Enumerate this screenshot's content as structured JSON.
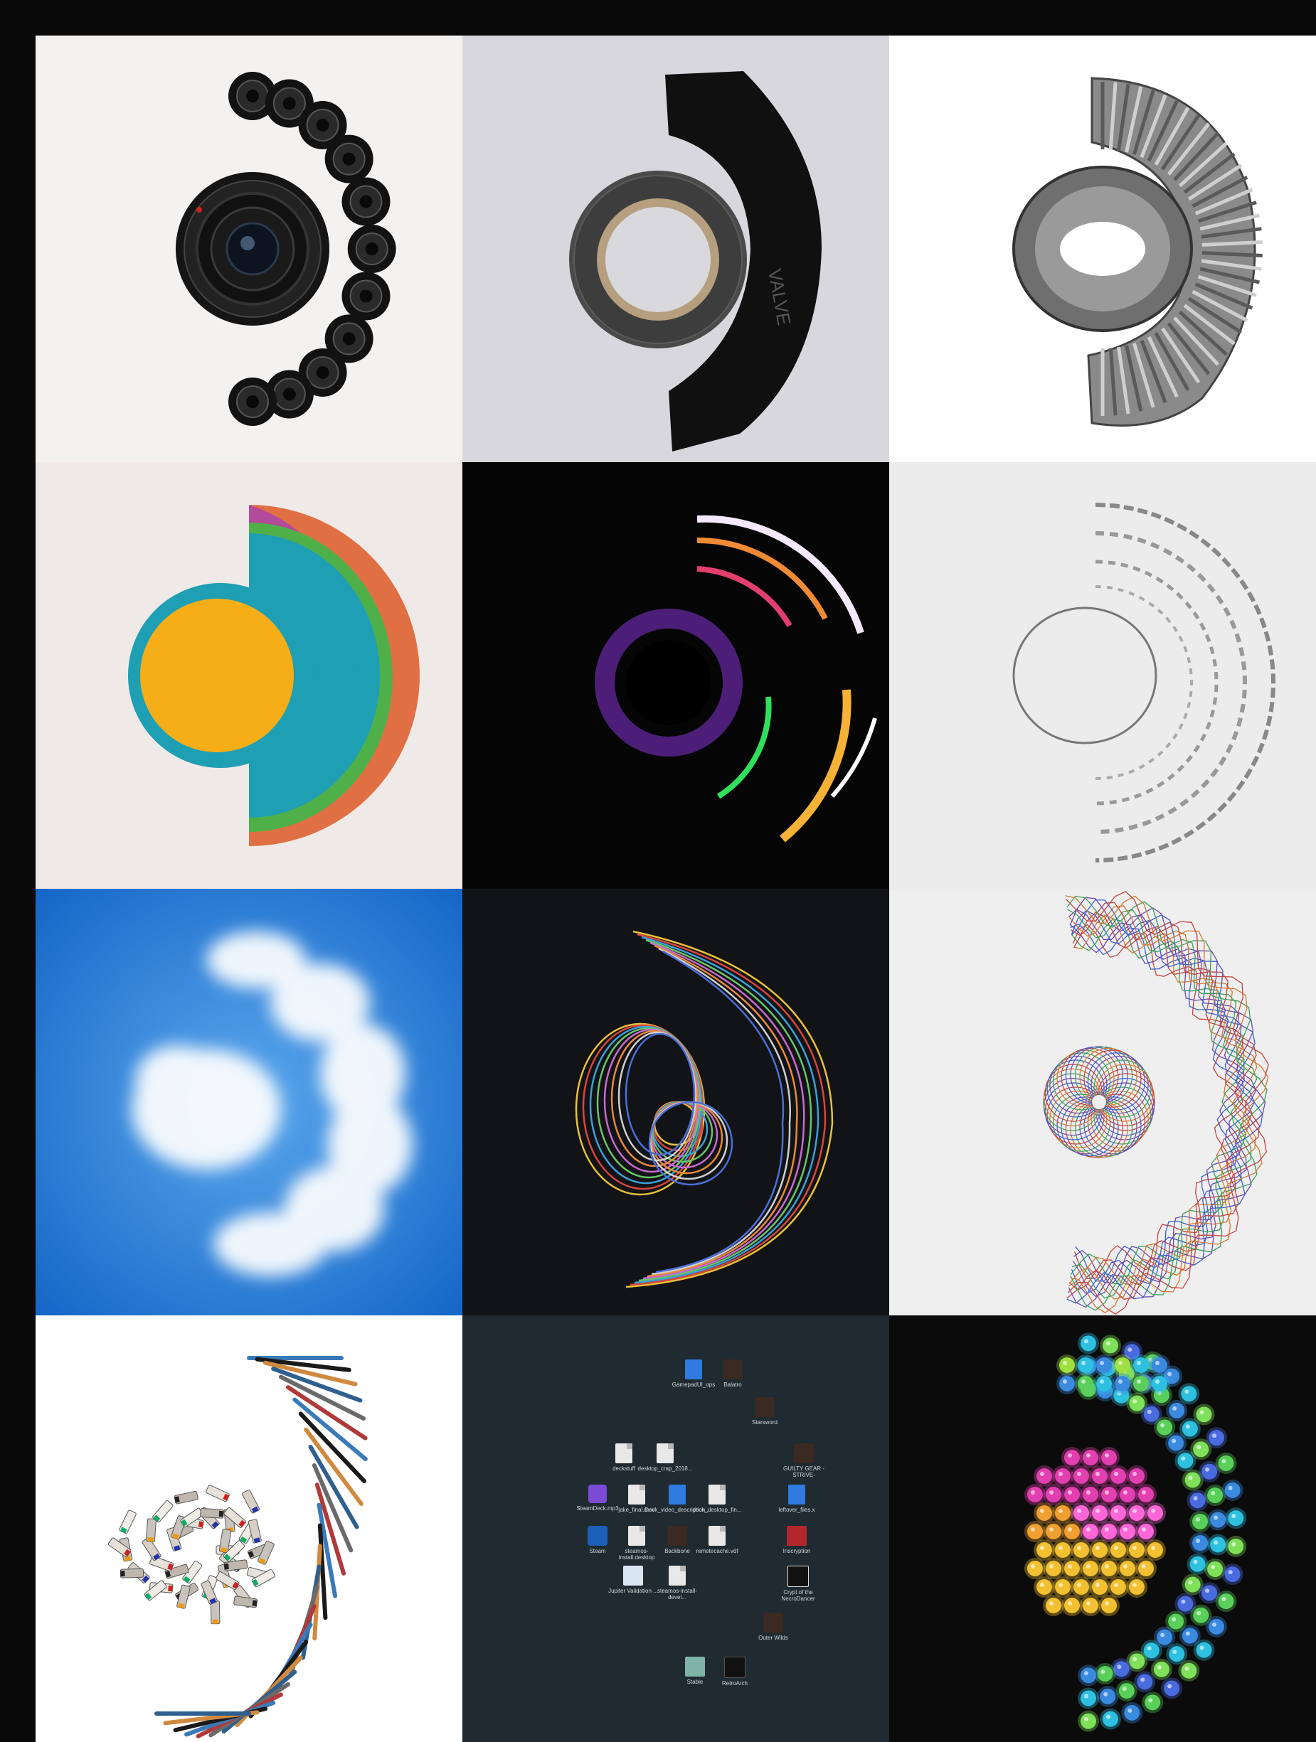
{
  "tiles": [
    {
      "id": "camera-lens-film-canisters",
      "bg": "#f4f2f0"
    },
    {
      "id": "gaffer-tape-roll",
      "bg": "#d8d7de"
    },
    {
      "id": "aluminum-duct",
      "bg": "#ffffff"
    },
    {
      "id": "paper-cut-layers",
      "bg": "#efeae8"
    },
    {
      "id": "light-trails",
      "bg": "#050505"
    },
    {
      "id": "pencil-drawing",
      "bg": "#ececec"
    },
    {
      "id": "cloud",
      "bg": "#1a6fd0"
    },
    {
      "id": "colored-threads",
      "bg": "#121316"
    },
    {
      "id": "spirograph",
      "bg": "#efefef"
    },
    {
      "id": "paint-brushes-tubes",
      "bg": "#ffffff"
    },
    {
      "id": "desktop-icons",
      "bg": "#1f2a31"
    },
    {
      "id": "glowing-markers",
      "bg": "#0b0b0b"
    }
  ],
  "tape_text": "VALVE",
  "desktop_icons": [
    {
      "label": "GamepadUI_ops",
      "icon": "doc-blue-icon"
    },
    {
      "label": "Balatro",
      "icon": "game-icon"
    },
    {
      "label": "Starsword",
      "icon": "game-icon"
    },
    {
      "label": "deckstuff",
      "icon": "doc-icon"
    },
    {
      "label": "desktop_crap_2018...",
      "icon": "doc-icon"
    },
    {
      "label": "GUILTY GEAR -STRIVE-",
      "icon": "game-icon"
    },
    {
      "label": "SteamDeck.mp3",
      "icon": "audio-icon"
    },
    {
      "label": "jake_final.mov",
      "icon": "doc-icon"
    },
    {
      "label": "Deck_video_description...",
      "icon": "doc-blue-icon"
    },
    {
      "label": "deck_desktop_fin...",
      "icon": "doc-icon"
    },
    {
      "label": "leftover_files.x",
      "icon": "doc-blue-icon"
    },
    {
      "label": "Steam",
      "icon": "steam-icon"
    },
    {
      "label": "steamos-install.desktop",
      "icon": "doc-icon"
    },
    {
      "label": "Backbone",
      "icon": "game-icon"
    },
    {
      "label": "remotecache.vdf",
      "icon": "doc-icon"
    },
    {
      "label": "Inscryption",
      "icon": "game-icon"
    },
    {
      "label": "Jupiter Validation ...",
      "icon": "windows-icon"
    },
    {
      "label": "steamos-install-devel...",
      "icon": "doc-icon"
    },
    {
      "label": "Crypt of the NecroDancer",
      "icon": "skull-icon"
    },
    {
      "label": "Outer Wilds",
      "icon": "game-icon"
    },
    {
      "label": "Stable",
      "icon": "app-icon"
    },
    {
      "label": "RetroArch",
      "icon": "retroarch-icon"
    }
  ]
}
